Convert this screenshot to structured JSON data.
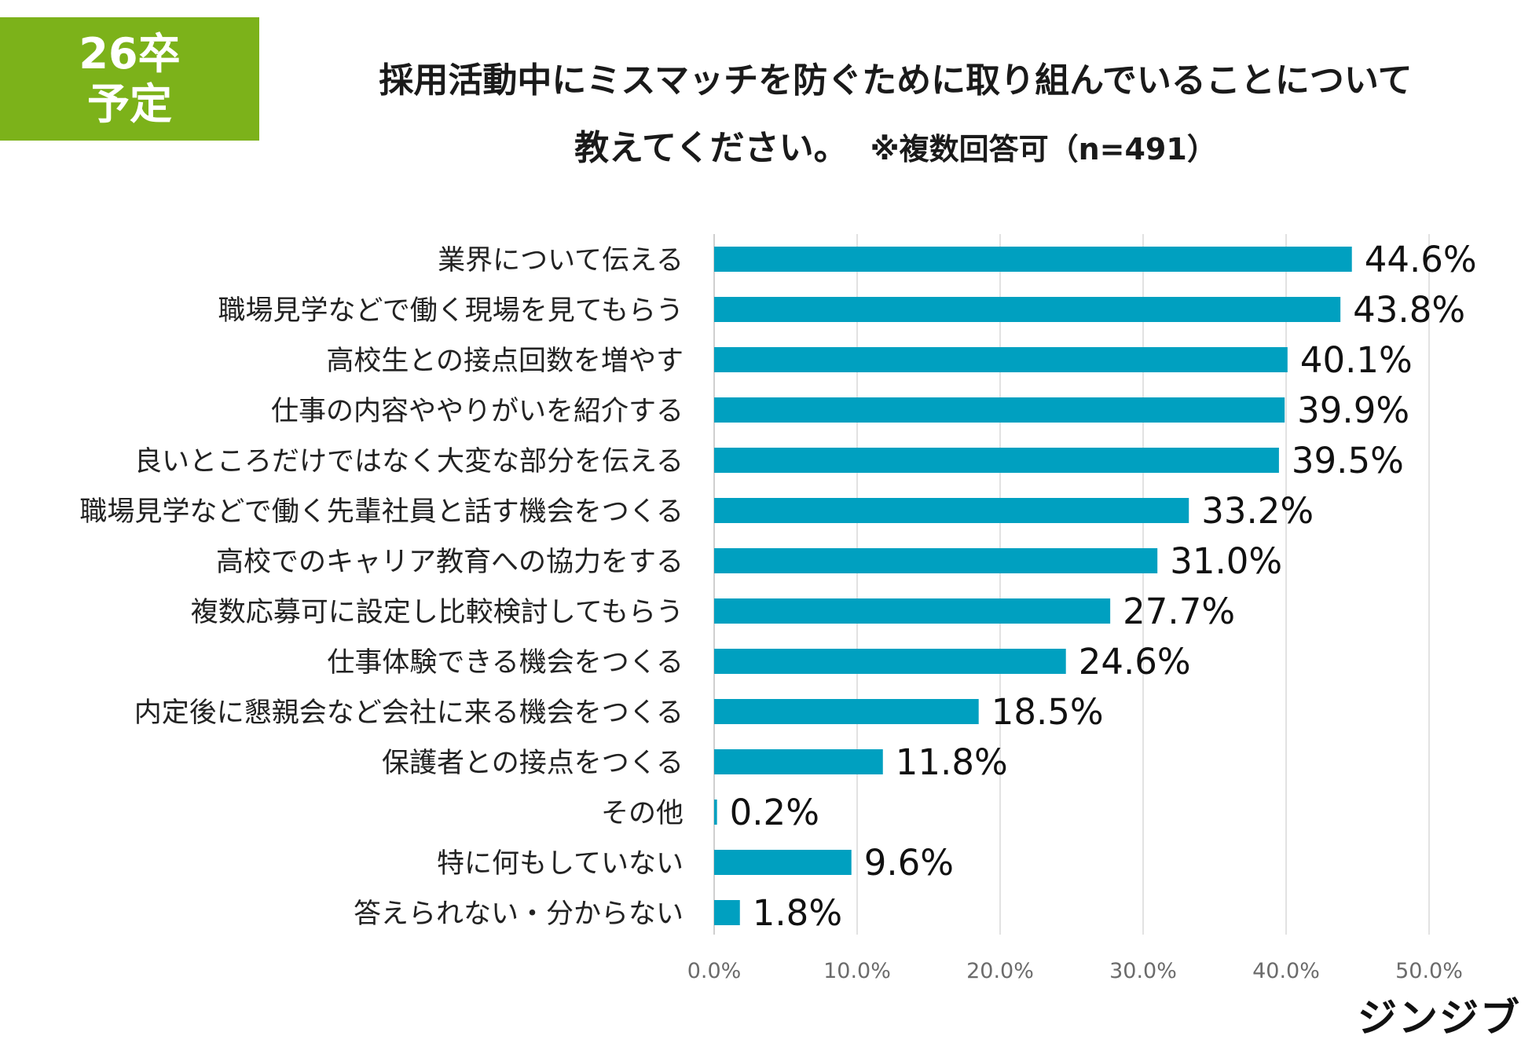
{
  "badge": {
    "line1": "26卒",
    "line2": "予定"
  },
  "title": {
    "line1": "採用活動中にミスマッチを防ぐために取り組んでいることについて",
    "line2": "教えてください。",
    "note": "※複数回答可（n=491）"
  },
  "brand": "ジンジブ",
  "colors": {
    "bar": "#00a0c0",
    "badge": "#7cb21a",
    "grid": "#d9d9d9"
  },
  "chart_data": {
    "type": "bar",
    "orientation": "horizontal",
    "categories": [
      "業界について伝える",
      "職場見学などで働く現場を見てもらう",
      "高校生との接点回数を増やす",
      "仕事の内容ややりがいを紹介する",
      "良いところだけではなく大変な部分を伝える",
      "職場見学などで働く先輩社員と話す機会をつくる",
      "高校でのキャリア教育への協力をする",
      "複数応募可に設定し比較検討してもらう",
      "仕事体験できる機会をつくる",
      "内定後に懇親会など会社に来る機会をつくる",
      "保護者との接点をつくる",
      "その他",
      "特に何もしていない",
      "答えられない・分からない"
    ],
    "values": [
      44.6,
      43.8,
      40.1,
      39.9,
      39.5,
      33.2,
      31.0,
      27.7,
      24.6,
      18.5,
      11.8,
      0.2,
      9.6,
      1.8
    ],
    "data_labels": [
      "44.6%",
      "43.8%",
      "40.1%",
      "39.9%",
      "39.5%",
      "33.2%",
      "31.0%",
      "27.7%",
      "24.6%",
      "18.5%",
      "11.8%",
      "0.2%",
      "9.6%",
      "1.8%"
    ],
    "xlim": [
      0,
      50
    ],
    "xticks": [
      0,
      10,
      20,
      30,
      40,
      50
    ],
    "xtick_labels": [
      "0.0%",
      "10.0%",
      "20.0%",
      "30.0%",
      "40.0%",
      "50.0%"
    ],
    "grid": true,
    "legend": "none",
    "xlabel": "",
    "ylabel": ""
  }
}
